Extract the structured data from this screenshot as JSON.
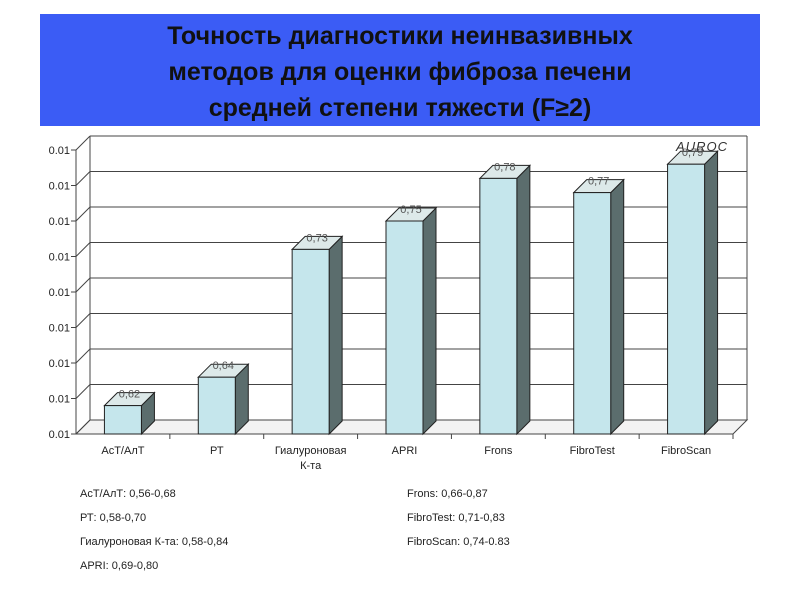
{
  "title": "Точность диагностики неинвазивных\nметодов для оценки фиброза печени\nсредней степени тяжести (F≥2)",
  "colors": {
    "title_bg": "#3b5cf5",
    "bar_front": "#c5e6ec",
    "bar_side": "#5b6d6d",
    "bar_top": "#dde9e9",
    "grid": "#444444"
  },
  "chart_data": {
    "type": "bar",
    "title": "",
    "annotation": "AUROC",
    "categories": [
      "АсТ/АлТ",
      "РТ",
      "Гиалуроновая\nК-та",
      "APRI",
      "Frons",
      "FibroTest",
      "FibroScan"
    ],
    "values": [
      0.62,
      0.64,
      0.73,
      0.75,
      0.78,
      0.77,
      0.79
    ],
    "data_labels": [
      "0,62",
      "0,64",
      "0,73",
      "0,75",
      "0,78",
      "0,77",
      "0,79"
    ],
    "y_tick_labels": [
      "0.01",
      "0.01",
      "0.01",
      "0.01",
      "0.01",
      "0.01",
      "0.01",
      "0.01",
      "0.01"
    ],
    "ylim": [
      0.6,
      0.8
    ],
    "grid": true,
    "legend": "none"
  },
  "ranges_left": [
    "АсТ/АлТ: 0,56-0,68",
    "РТ: 0,58-0,70",
    "Гиалуроновая К-та: 0,58-0,84",
    "APRI: 0,69-0,80"
  ],
  "ranges_right": [
    "Frons: 0,66-0,87",
    "FibroTest: 0,71-0,83",
    "FibroScan: 0,74-0.83"
  ]
}
